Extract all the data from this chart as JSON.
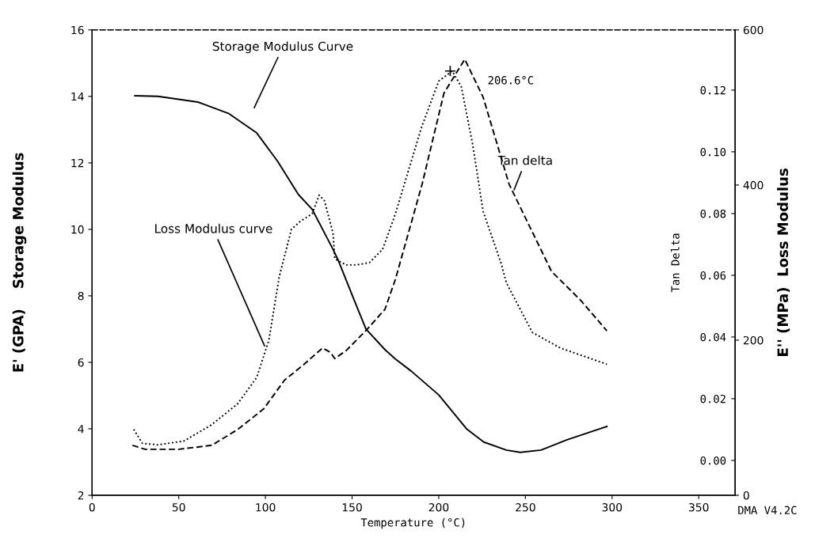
{
  "chart_data": {
    "type": "line",
    "xlabel": "Temperature (°C)",
    "ylabel": "E' (GPA)    Storage Modulus",
    "y2label": "Tan Delta",
    "y3label": "E'' (MPa)  Loss Modulus",
    "xlim": [
      0,
      371
    ],
    "xticks": [
      0,
      50,
      100,
      150,
      200,
      250,
      300,
      350
    ],
    "ylim": [
      2,
      16
    ],
    "yticks": [
      2,
      4,
      6,
      8,
      10,
      12,
      14,
      16
    ],
    "y2lim": [
      -0.0113,
      0.1395
    ],
    "y2ticks": [
      {
        "value": 0,
        "label": "0.00"
      },
      {
        "value": 0.02,
        "label": "0.02"
      },
      {
        "value": 0.04,
        "label": "0.04"
      },
      {
        "value": 0.06,
        "label": "0.06"
      },
      {
        "value": 0.08,
        "label": "0.08"
      },
      {
        "value": 0.1,
        "label": "0.10"
      },
      {
        "value": 0.12,
        "label": "0.12"
      }
    ],
    "y3lim": [
      0,
      600
    ],
    "y3ticks": [
      0,
      200,
      400,
      600
    ],
    "grid": false,
    "legend": false,
    "marker": "none",
    "series": [
      {
        "name": "Storage Modulus Curve",
        "color": "#000000",
        "axis": "y",
        "line_style": "solid",
        "x": [
          24.7,
          38,
          61,
          79,
          95,
          107,
          119,
          127,
          133,
          139,
          142,
          151,
          158,
          169,
          175,
          184,
          200,
          216,
          226,
          239,
          247,
          259,
          274,
          297
        ],
        "values": [
          14.02,
          14.0,
          13.83,
          13.48,
          12.9,
          12.05,
          11.05,
          10.6,
          10.0,
          9.4,
          9.07,
          7.9,
          7.0,
          6.38,
          6.1,
          5.74,
          5.02,
          4.0,
          3.6,
          3.36,
          3.29,
          3.36,
          3.67,
          4.07
        ]
      },
      {
        "name": "Loss Modulus curve",
        "color": "#000000",
        "axis": "y3",
        "line_style": "dotted",
        "x": [
          24,
          29,
          38,
          53,
          69,
          84,
          95,
          102,
          108,
          115,
          120,
          127,
          131,
          134,
          139,
          140,
          146.5,
          152.5,
          160,
          167.6,
          175,
          190,
          200,
          207.7,
          213,
          219.6,
          225.6,
          236,
          239,
          254,
          270,
          297
        ],
        "values": [
          85,
          67,
          65,
          70,
          91,
          118,
          152,
          200,
          282,
          343,
          353,
          363,
          387,
          380,
          338,
          305,
          297,
          297,
          300,
          317,
          363,
          474,
          534,
          547,
          527,
          452,
          366,
          299,
          274,
          210,
          190,
          169
        ]
      },
      {
        "name": "Tan delta",
        "color": "#000000",
        "axis": "y2",
        "line_style": "dashed",
        "x": [
          23.3,
          30.6,
          50,
          69,
          84,
          99,
          111,
          122,
          130,
          133,
          137.5,
          140,
          146.6,
          158.4,
          169,
          175,
          190.4,
          203,
          215,
          225.6,
          240.6,
          265,
          282,
          297
        ],
        "values": [
          0.0049,
          0.0036,
          0.0036,
          0.0049,
          0.01,
          0.0167,
          0.026,
          0.031,
          0.035,
          0.0364,
          0.035,
          0.033,
          0.0356,
          0.0423,
          0.049,
          0.0587,
          0.0895,
          0.119,
          0.13,
          0.1177,
          0.0895,
          0.0613,
          0.0518,
          0.042
        ]
      },
      {
        "type": "scatter",
        "color": "#000000",
        "axis": "y3",
        "marker": "cross",
        "x": [
          206.6
        ],
        "values": [
          547
        ]
      }
    ],
    "annotations": [
      "206.6°C",
      "DMA V4.2C"
    ]
  }
}
